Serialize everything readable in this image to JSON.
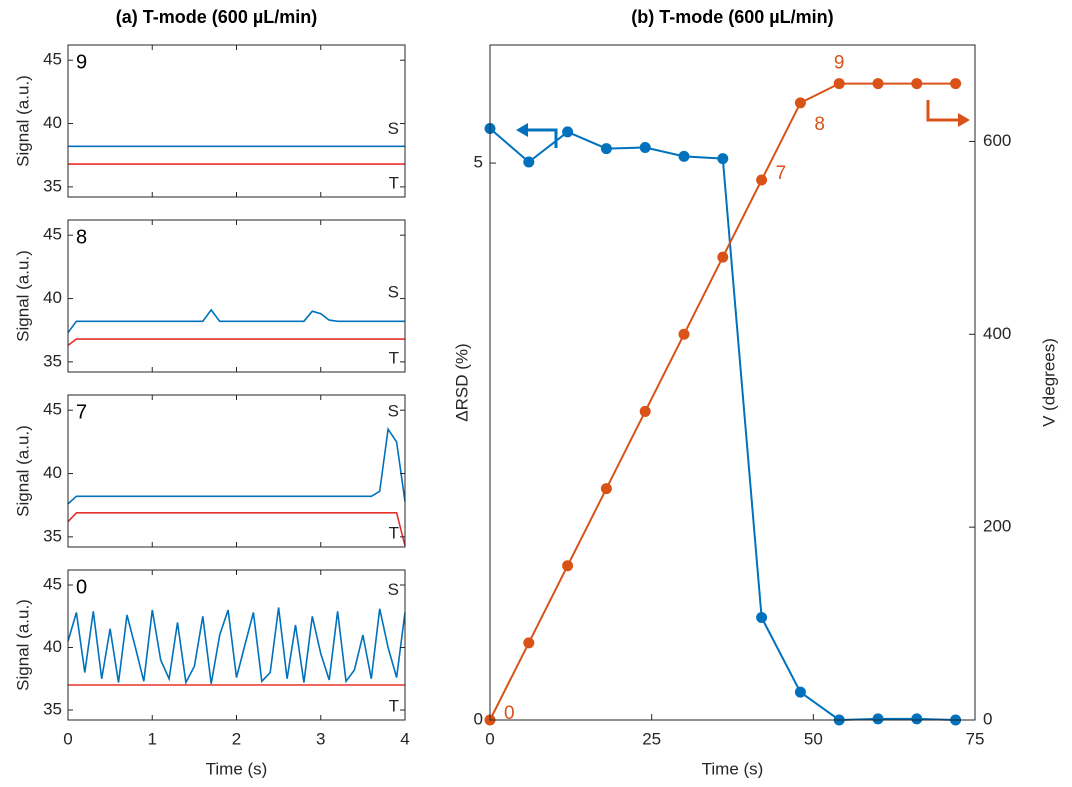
{
  "chart_data": [
    {
      "type": "panels",
      "title": "(a) T-mode (600 µL/min)",
      "xlabel": "Time (s)",
      "ylabel": "Signal (a.u.)",
      "xlim": [
        0,
        4
      ],
      "xticks": [
        0,
        1,
        2,
        3,
        4
      ],
      "ylim": [
        34.2,
        46.2
      ],
      "yticks": [
        35,
        40,
        45
      ],
      "x": [
        0,
        0.1,
        0.2,
        0.3,
        0.4,
        0.5,
        0.6,
        0.7,
        0.8,
        0.9,
        1,
        1.1,
        1.2,
        1.3,
        1.4,
        1.5,
        1.6,
        1.7,
        1.8,
        1.9,
        2,
        2.1,
        2.2,
        2.3,
        2.4,
        2.5,
        2.6,
        2.7,
        2.8,
        2.9,
        3,
        3.1,
        3.2,
        3.3,
        3.4,
        3.5,
        3.6,
        3.7,
        3.8,
        3.9,
        4
      ],
      "panels": [
        {
          "annotation": "9",
          "series": [
            {
              "name": "S",
              "color": "#0072bd",
              "values": [
                38.2,
                38.2,
                38.2,
                38.2,
                38.2,
                38.2,
                38.2,
                38.2,
                38.2,
                38.2,
                38.2,
                38.2,
                38.2,
                38.2,
                38.2,
                38.2,
                38.2,
                38.2,
                38.2,
                38.2,
                38.2,
                38.2,
                38.2,
                38.2,
                38.2,
                38.2,
                38.2,
                38.2,
                38.2,
                38.2,
                38.2,
                38.2,
                38.2,
                38.2,
                38.2,
                38.2,
                38.2,
                38.2,
                38.2,
                38.2,
                38.2
              ]
            },
            {
              "name": "T",
              "color": "#e8302a",
              "values": [
                36.8,
                36.8,
                36.8,
                36.8,
                36.8,
                36.8,
                36.8,
                36.8,
                36.8,
                36.8,
                36.8,
                36.8,
                36.8,
                36.8,
                36.8,
                36.8,
                36.8,
                36.8,
                36.8,
                36.8,
                36.8,
                36.8,
                36.8,
                36.8,
                36.8,
                36.8,
                36.8,
                36.8,
                36.8,
                36.8,
                36.8,
                36.8,
                36.8,
                36.8,
                36.8,
                36.8,
                36.8,
                36.8,
                36.8,
                36.8,
                36.8
              ]
            }
          ]
        },
        {
          "annotation": "8",
          "series": [
            {
              "name": "S",
              "color": "#0072bd",
              "values": [
                37.3,
                38.2,
                38.2,
                38.2,
                38.2,
                38.2,
                38.2,
                38.2,
                38.2,
                38.2,
                38.2,
                38.2,
                38.2,
                38.2,
                38.2,
                38.2,
                38.2,
                39.1,
                38.2,
                38.2,
                38.2,
                38.2,
                38.2,
                38.2,
                38.2,
                38.2,
                38.2,
                38.2,
                38.2,
                39.0,
                38.8,
                38.3,
                38.2,
                38.2,
                38.2,
                38.2,
                38.2,
                38.2,
                38.2,
                38.2,
                38.2
              ]
            },
            {
              "name": "T",
              "color": "#e8302a",
              "values": [
                36.3,
                36.8,
                36.8,
                36.8,
                36.8,
                36.8,
                36.8,
                36.8,
                36.8,
                36.8,
                36.8,
                36.8,
                36.8,
                36.8,
                36.8,
                36.8,
                36.8,
                36.8,
                36.8,
                36.8,
                36.8,
                36.8,
                36.8,
                36.8,
                36.8,
                36.8,
                36.8,
                36.8,
                36.8,
                36.8,
                36.8,
                36.8,
                36.8,
                36.8,
                36.8,
                36.8,
                36.8,
                36.8,
                36.8,
                36.8,
                36.8
              ]
            }
          ]
        },
        {
          "annotation": "7",
          "series": [
            {
              "name": "S",
              "color": "#0072bd",
              "values": [
                37.6,
                38.2,
                38.2,
                38.2,
                38.2,
                38.2,
                38.2,
                38.2,
                38.2,
                38.2,
                38.2,
                38.2,
                38.2,
                38.2,
                38.2,
                38.2,
                38.2,
                38.2,
                38.2,
                38.2,
                38.2,
                38.2,
                38.2,
                38.2,
                38.2,
                38.2,
                38.2,
                38.2,
                38.2,
                38.2,
                38.2,
                38.2,
                38.2,
                38.2,
                38.2,
                38.2,
                38.2,
                38.6,
                43.5,
                42.5,
                37.8
              ]
            },
            {
              "name": "T",
              "color": "#e8302a",
              "values": [
                36.2,
                36.9,
                36.9,
                36.9,
                36.9,
                36.9,
                36.9,
                36.9,
                36.9,
                36.9,
                36.9,
                36.9,
                36.9,
                36.9,
                36.9,
                36.9,
                36.9,
                36.9,
                36.9,
                36.9,
                36.9,
                36.9,
                36.9,
                36.9,
                36.9,
                36.9,
                36.9,
                36.9,
                36.9,
                36.9,
                36.9,
                36.9,
                36.9,
                36.9,
                36.9,
                36.9,
                36.9,
                36.9,
                36.9,
                36.9,
                34.3
              ]
            }
          ]
        },
        {
          "annotation": "0",
          "series": [
            {
              "name": "S",
              "color": "#0072bd",
              "values": [
                40.5,
                42.8,
                38,
                42.9,
                37.5,
                41.5,
                37.2,
                42.6,
                40,
                37.3,
                43,
                39,
                37.5,
                42,
                37.2,
                38.5,
                42.5,
                37.1,
                41,
                43,
                37.6,
                40.2,
                42.8,
                37.3,
                38,
                43.2,
                37.5,
                41.8,
                37.2,
                42.5,
                39.5,
                37.4,
                42.9,
                37.3,
                38.2,
                41,
                37.5,
                43.1,
                40,
                37.6,
                42.8
              ]
            },
            {
              "name": "T",
              "color": "#e8302a",
              "values": [
                37,
                37,
                37,
                37,
                37,
                37,
                37,
                37,
                37,
                37,
                37,
                37,
                37,
                37,
                37,
                37,
                37,
                37,
                37,
                37,
                37,
                37,
                37,
                37,
                37,
                37,
                37,
                37,
                37,
                37,
                37,
                37,
                37,
                37,
                37,
                37,
                37,
                37,
                37,
                37,
                37
              ]
            }
          ]
        }
      ]
    },
    {
      "type": "dual_line",
      "title": "(b) T-mode (600 µL/min)",
      "xlabel": "Time (s)",
      "ylabel": "ΔRSD (%)",
      "y2label": "V (degrees)",
      "xlim": [
        0,
        75
      ],
      "xticks": [
        0,
        25,
        50,
        75
      ],
      "ylim": [
        0,
        6.06
      ],
      "yticks": [
        0,
        5
      ],
      "y2lim": [
        0,
        700
      ],
      "y2ticks": [
        0,
        200,
        400,
        600
      ],
      "x": [
        0,
        6,
        12,
        18,
        24,
        30,
        36,
        42,
        48,
        54,
        60,
        66,
        72
      ],
      "series": [
        {
          "name": "ΔRSD",
          "color": "#0072bd",
          "values": [
            5.31,
            5.01,
            5.28,
            5.13,
            5.14,
            5.06,
            5.04,
            0.92,
            0.25,
            0,
            0.01,
            0.01,
            0
          ]
        },
        {
          "name": "V",
          "color": "#d95319",
          "axis": "y2",
          "values": [
            0,
            80,
            160,
            240,
            320,
            400,
            480,
            560,
            640,
            660,
            660,
            660,
            660
          ],
          "point_labels": [
            "0",
            null,
            null,
            null,
            null,
            null,
            null,
            "7",
            "8",
            "9",
            null,
            null,
            null
          ]
        }
      ]
    }
  ]
}
